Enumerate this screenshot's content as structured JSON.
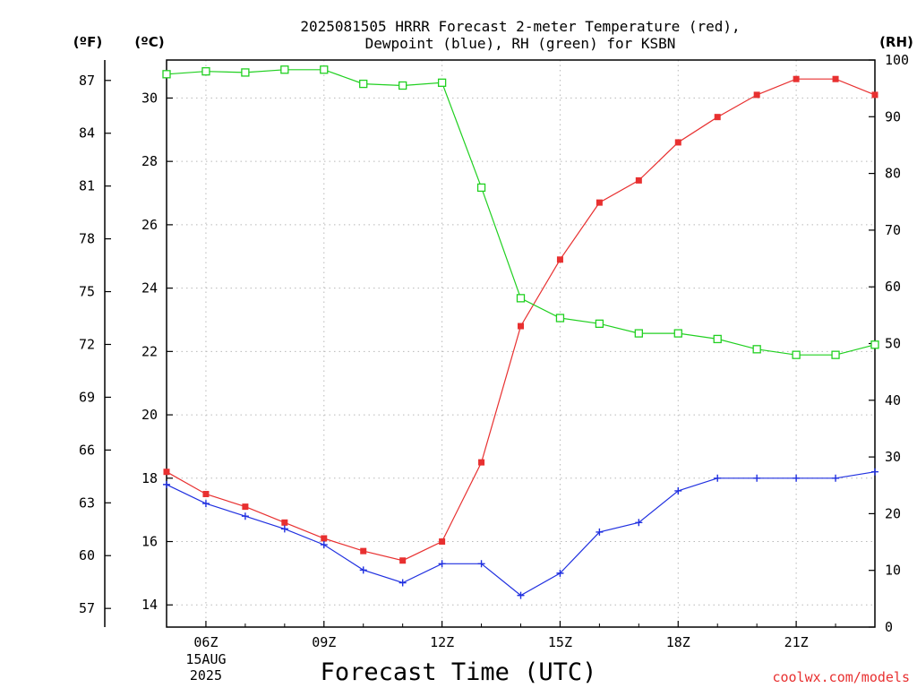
{
  "header": {
    "title_line1": "2025081505 HRRR Forecast 2-meter Temperature (red),",
    "title_line2": "Dewpoint (blue), RH (green) for KSBN",
    "unit_f": "(ºF)",
    "unit_c": "(ºC)",
    "unit_rh": "(RH)"
  },
  "footer": {
    "xlabel": "Forecast Time (UTC)",
    "credit": "coolwx.com/models"
  },
  "chart_data": {
    "type": "line",
    "x": [
      5,
      6,
      7,
      8,
      9,
      10,
      11,
      12,
      13,
      14,
      15,
      16,
      17,
      18,
      19,
      20,
      21,
      22,
      23
    ],
    "xlim": [
      5,
      23
    ],
    "x_ticks": [
      {
        "x": 6,
        "label": "06Z",
        "sub1": "15AUG",
        "sub2": "2025"
      },
      {
        "x": 9,
        "label": "09Z"
      },
      {
        "x": 12,
        "label": "12Z"
      },
      {
        "x": 15,
        "label": "15Z"
      },
      {
        "x": 18,
        "label": "18Z"
      },
      {
        "x": 21,
        "label": "21Z"
      }
    ],
    "y_celsius": {
      "lim": [
        13.3,
        31.2
      ],
      "ticks": [
        14,
        16,
        18,
        20,
        22,
        24,
        26,
        28,
        30
      ]
    },
    "y_fahrenheit": {
      "ticks": [
        57,
        60,
        63,
        66,
        69,
        72,
        75,
        78,
        81,
        84,
        87
      ]
    },
    "y_rh": {
      "lim": [
        0,
        100
      ],
      "ticks": [
        0,
        10,
        20,
        30,
        40,
        50,
        60,
        70,
        80,
        90,
        100
      ]
    },
    "grid": true,
    "series": [
      {
        "name": "Temperature (red)",
        "axis": "celsius",
        "color": "#e83030",
        "marker": "filled-square",
        "values": [
          18.2,
          17.5,
          17.1,
          16.6,
          16.1,
          15.7,
          15.4,
          16.0,
          18.5,
          22.8,
          24.9,
          26.7,
          27.4,
          28.6,
          29.4,
          30.1,
          30.6,
          30.6,
          30.1
        ]
      },
      {
        "name": "Dewpoint (blue)",
        "axis": "celsius",
        "color": "#2030e0",
        "marker": "plus",
        "values": [
          17.8,
          17.2,
          16.8,
          16.4,
          15.9,
          15.1,
          14.7,
          15.3,
          15.3,
          14.3,
          15.0,
          16.3,
          16.6,
          17.6,
          18.0,
          18.0,
          18.0,
          18.0,
          18.2
        ]
      },
      {
        "name": "RH (green)",
        "axis": "rh",
        "color": "#20d020",
        "marker": "open-square",
        "values": [
          97.5,
          98.0,
          97.8,
          98.3,
          98.3,
          95.8,
          95.5,
          96.0,
          77.5,
          58.0,
          54.5,
          53.5,
          51.8,
          51.8,
          50.8,
          49.0,
          48.0,
          48.0,
          49.8
        ]
      }
    ]
  }
}
